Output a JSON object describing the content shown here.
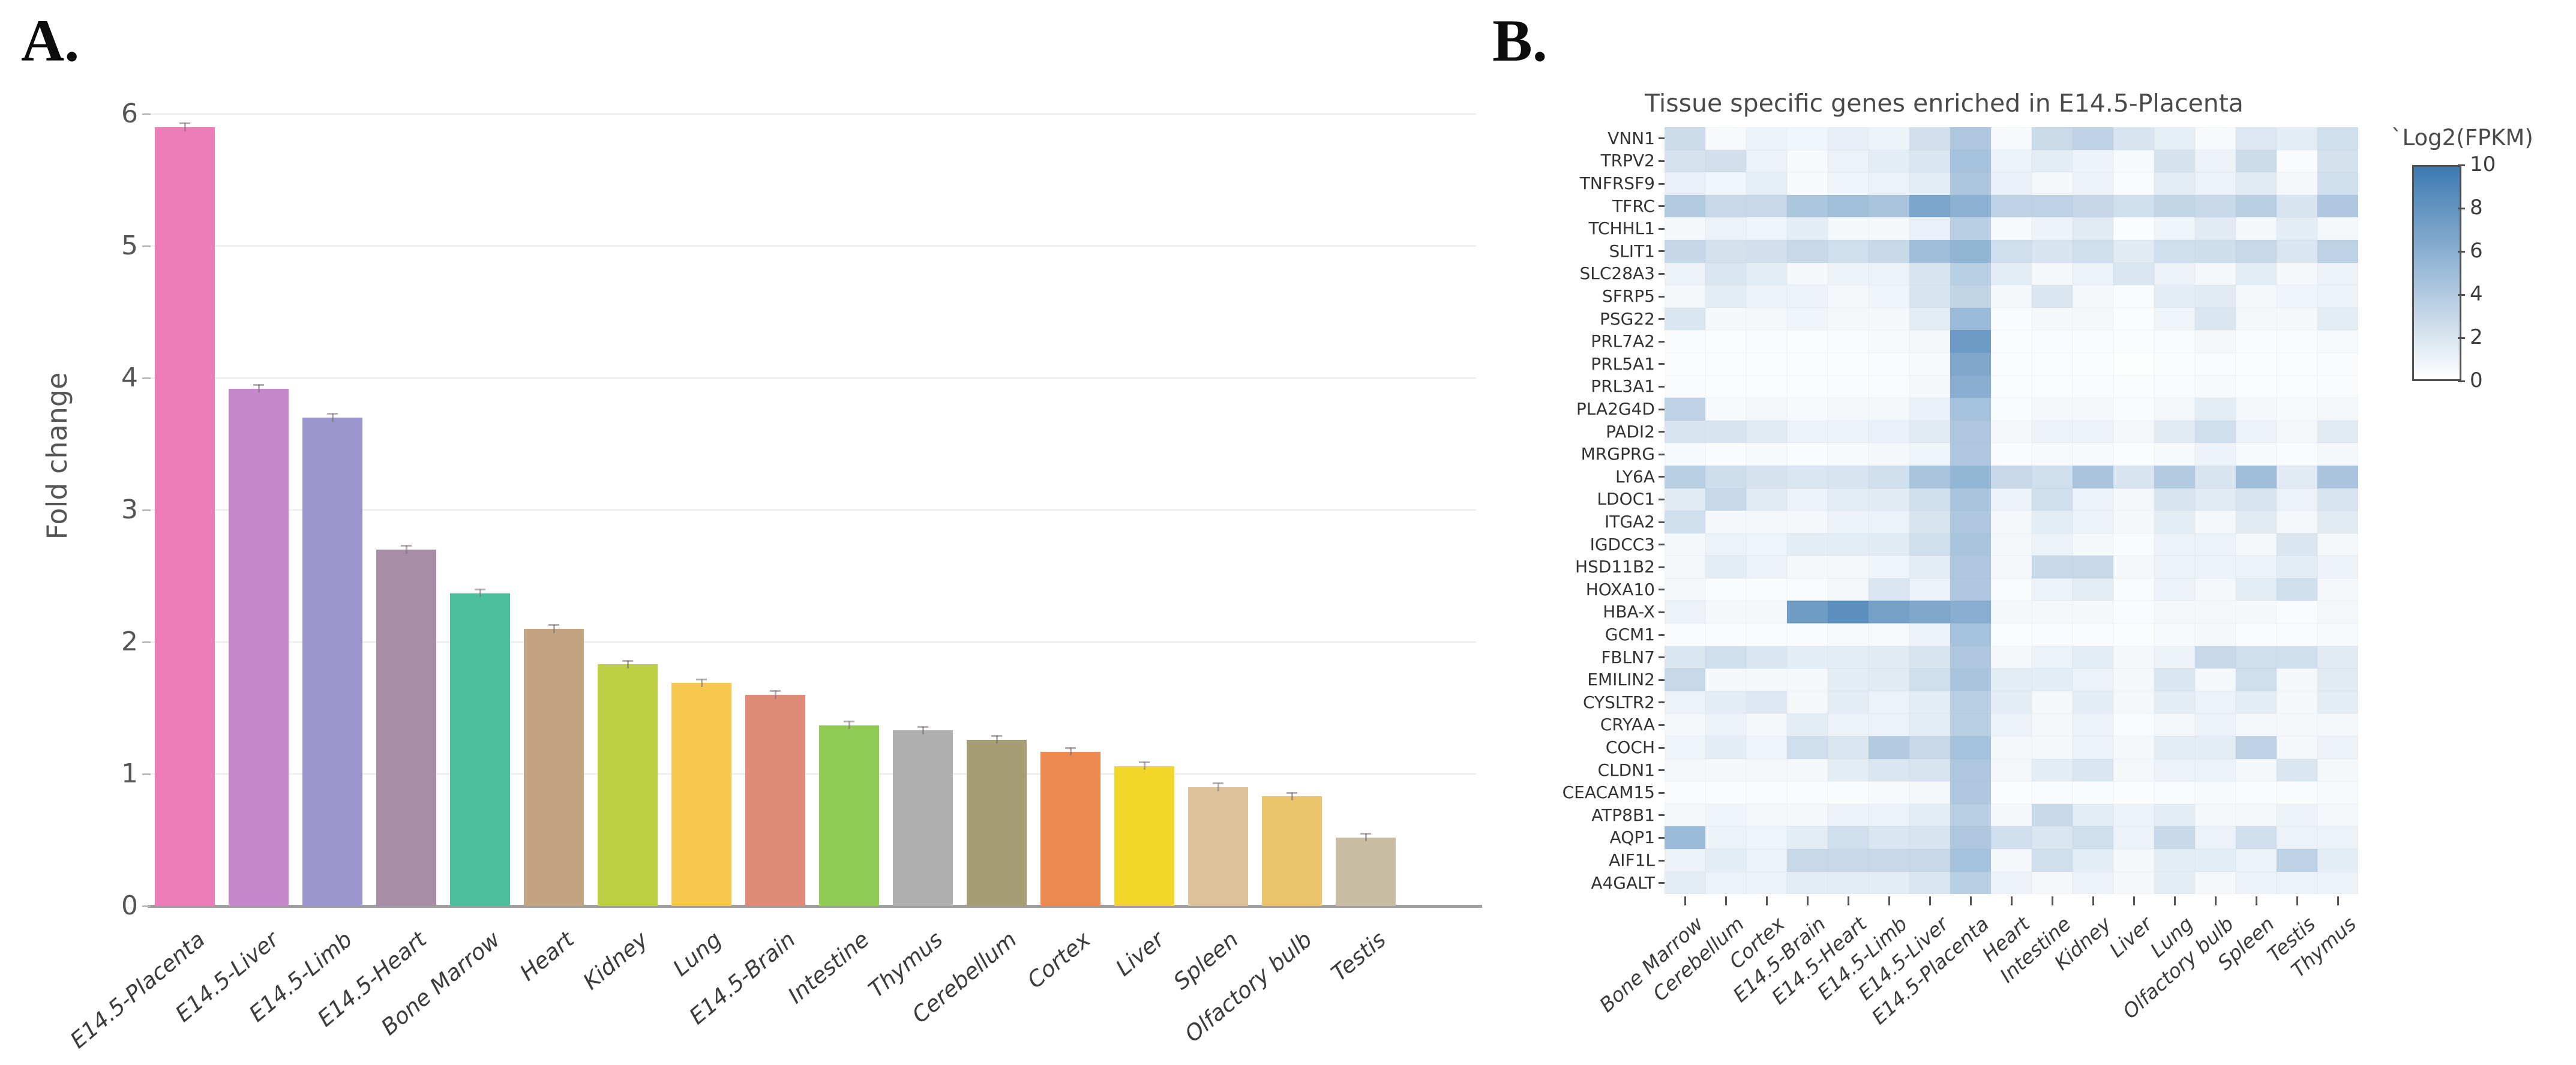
{
  "panels": {
    "a_label": "A.",
    "b_label": "B."
  },
  "chart_data": [
    {
      "type": "bar",
      "title": "",
      "xlabel": "",
      "ylabel": "Fold change",
      "ylim": [
        0,
        6
      ],
      "yticks": [
        0,
        1,
        2,
        3,
        4,
        5,
        6
      ],
      "grid": true,
      "categories": [
        "E14.5-Placenta",
        "E14.5-Liver",
        "E14.5-Limb",
        "E14.5-Heart",
        "Bone Marrow",
        "Heart",
        "Kidney",
        "Lung",
        "E14.5-Brain",
        "Intestine",
        "Thymus",
        "Cerebellum",
        "Cortex",
        "Liver",
        "Spleen",
        "Olfactory bulb",
        "Testis"
      ],
      "values": [
        5.9,
        3.92,
        3.7,
        2.7,
        2.37,
        2.1,
        1.83,
        1.69,
        1.6,
        1.37,
        1.33,
        1.26,
        1.17,
        1.06,
        0.9,
        0.83,
        0.52
      ],
      "error": 0.03,
      "bar_colors": [
        "#ed7db8",
        "#c687cb",
        "#9a95cd",
        "#a78da6",
        "#4cbf9c",
        "#c2a483",
        "#bdd044",
        "#f6c94e",
        "#e08a78",
        "#90cb55",
        "#b0b0b0",
        "#a59e74",
        "#ee8951",
        "#f3d629",
        "#ddc29b",
        "#ecc46e",
        "#c9bda3"
      ]
    },
    {
      "type": "heatmap",
      "title": "Tissue specific genes enriched in E14.5-Placenta",
      "columns": [
        "Bone Marrow",
        "Cerebellum",
        "Cortex",
        "E14.5-Brain",
        "E14.5-Heart",
        "E14.5-Limb",
        "E14.5-Liver",
        "E14.5-Placenta",
        "Heart",
        "Intestine",
        "Kidney",
        "Liver",
        "Lung",
        "Olfactory bulb",
        "Spleen",
        "Testis",
        "Thymus"
      ],
      "rows": [
        "VNN1",
        "TRPV2",
        "TNFRSF9",
        "TFRC",
        "TCHHL1",
        "SLIT1",
        "SLC28A3",
        "SFRP5",
        "PSG22",
        "PRL7A2",
        "PRL5A1",
        "PRL3A1",
        "PLA2G4D",
        "PADI2",
        "MRGPRG",
        "LY6A",
        "LDOC1",
        "ITGA2",
        "IGDCC3",
        "HSD11B2",
        "HOXA10",
        "HBA-X",
        "GCM1",
        "FBLN7",
        "EMILIN2",
        "CYSLTR2",
        "CRYAA",
        "COCH",
        "CLDN1",
        "CEACAM15",
        "ATP8B1",
        "AQP1",
        "AIF1L",
        "A4GALT"
      ],
      "values": [
        [
          2.6,
          0.4,
          0.9,
          0.7,
          1.2,
          0.9,
          2.3,
          4.2,
          0.4,
          2.8,
          3.3,
          2.0,
          1.3,
          0.4,
          1.8,
          1.4,
          2.4
        ],
        [
          2.1,
          2.3,
          1.0,
          0.4,
          1.0,
          1.4,
          1.9,
          4.6,
          1.0,
          1.4,
          0.9,
          0.4,
          2.1,
          0.9,
          2.6,
          0.3,
          2.2
        ],
        [
          1.1,
          0.7,
          1.3,
          0.4,
          0.8,
          1.0,
          1.4,
          4.3,
          1.1,
          0.5,
          0.9,
          0.3,
          1.4,
          1.0,
          1.5,
          0.5,
          2.4
        ],
        [
          3.9,
          2.9,
          2.9,
          4.3,
          4.8,
          4.4,
          6.8,
          5.9,
          3.4,
          3.4,
          3.0,
          2.4,
          3.1,
          2.9,
          3.6,
          2.0,
          4.1
        ],
        [
          0.5,
          1.0,
          0.8,
          1.4,
          0.5,
          0.5,
          1.1,
          3.6,
          0.4,
          0.9,
          1.5,
          0.2,
          0.8,
          1.5,
          0.5,
          1.4,
          0.6
        ],
        [
          3.0,
          2.2,
          2.3,
          2.9,
          2.4,
          2.9,
          4.9,
          5.6,
          2.4,
          2.0,
          2.4,
          1.5,
          2.4,
          2.5,
          2.9,
          1.9,
          3.4
        ],
        [
          1.0,
          1.9,
          1.4,
          0.5,
          0.9,
          1.0,
          2.0,
          3.6,
          1.4,
          0.5,
          1.0,
          1.9,
          1.0,
          0.5,
          1.4,
          0.5,
          1.0
        ],
        [
          0.5,
          1.4,
          0.9,
          1.0,
          0.5,
          0.8,
          2.0,
          3.2,
          0.5,
          1.9,
          0.5,
          0.3,
          1.4,
          1.5,
          0.5,
          0.8,
          1.0
        ],
        [
          1.9,
          0.5,
          0.5,
          0.8,
          0.5,
          0.5,
          1.4,
          5.1,
          0.3,
          0.5,
          0.5,
          0.2,
          0.8,
          1.9,
          0.5,
          0.5,
          1.4
        ],
        [
          0.3,
          0.2,
          0.3,
          0.2,
          0.3,
          0.4,
          0.6,
          7.6,
          0.2,
          0.3,
          0.3,
          0.2,
          0.3,
          0.5,
          0.3,
          0.3,
          0.4
        ],
        [
          0.2,
          0.2,
          0.2,
          0.2,
          0.2,
          0.3,
          0.4,
          6.6,
          0.2,
          0.2,
          0.2,
          0.1,
          0.2,
          0.3,
          0.2,
          0.2,
          0.3
        ],
        [
          0.3,
          0.2,
          0.2,
          0.2,
          0.3,
          0.3,
          0.5,
          6.1,
          0.2,
          0.2,
          0.3,
          0.2,
          0.3,
          0.4,
          0.2,
          0.2,
          0.3
        ],
        [
          3.4,
          0.4,
          0.5,
          0.4,
          0.6,
          0.6,
          1.1,
          4.6,
          0.3,
          0.5,
          0.5,
          0.3,
          0.6,
          1.4,
          0.5,
          0.4,
          0.6
        ],
        [
          2.0,
          2.0,
          1.5,
          1.0,
          1.0,
          1.1,
          1.5,
          4.1,
          0.5,
          1.0,
          1.0,
          0.5,
          1.5,
          2.4,
          1.0,
          0.5,
          1.5
        ],
        [
          0.4,
          0.3,
          0.4,
          0.3,
          0.4,
          0.5,
          0.8,
          4.1,
          0.3,
          0.4,
          0.4,
          0.2,
          0.4,
          0.9,
          0.4,
          0.3,
          0.5
        ],
        [
          3.6,
          2.5,
          2.1,
          1.9,
          2.0,
          2.4,
          4.4,
          5.5,
          2.9,
          2.4,
          4.4,
          2.0,
          3.9,
          2.0,
          4.9,
          1.5,
          4.4
        ],
        [
          1.5,
          2.9,
          1.5,
          1.0,
          1.4,
          1.5,
          2.4,
          4.4,
          1.0,
          2.4,
          1.0,
          0.5,
          2.0,
          1.5,
          2.0,
          1.0,
          2.0
        ],
        [
          2.4,
          0.5,
          0.5,
          0.5,
          1.0,
          1.0,
          2.0,
          4.1,
          0.5,
          1.4,
          1.0,
          0.5,
          1.4,
          0.5,
          1.5,
          0.5,
          1.5
        ],
        [
          0.5,
          1.0,
          0.8,
          1.4,
          1.4,
          1.5,
          2.4,
          4.4,
          0.5,
          1.0,
          0.5,
          0.3,
          1.0,
          1.0,
          0.5,
          1.9,
          0.5
        ],
        [
          0.5,
          1.4,
          1.0,
          0.5,
          0.5,
          0.8,
          1.4,
          4.1,
          0.5,
          2.9,
          2.9,
          0.5,
          1.0,
          1.0,
          1.0,
          1.4,
          1.0
        ],
        [
          0.5,
          0.3,
          0.3,
          0.3,
          0.5,
          1.9,
          1.0,
          4.1,
          0.3,
          1.0,
          1.4,
          0.3,
          1.0,
          0.5,
          1.4,
          2.4,
          0.5
        ],
        [
          1.0,
          0.5,
          0.5,
          7.4,
          8.4,
          7.1,
          6.6,
          6.1,
          0.5,
          0.5,
          0.5,
          0.3,
          0.5,
          0.5,
          0.5,
          0.3,
          0.5
        ],
        [
          0.3,
          0.3,
          0.3,
          0.3,
          0.4,
          0.4,
          0.9,
          4.6,
          0.2,
          0.3,
          0.3,
          0.2,
          0.4,
          0.5,
          0.3,
          0.3,
          0.4
        ],
        [
          1.9,
          2.4,
          1.9,
          1.4,
          1.4,
          1.5,
          2.0,
          4.1,
          0.5,
          1.0,
          1.4,
          0.5,
          1.0,
          2.9,
          2.4,
          2.4,
          1.5
        ],
        [
          2.9,
          0.5,
          0.5,
          0.5,
          1.4,
          1.5,
          2.4,
          4.4,
          1.4,
          1.4,
          1.0,
          0.5,
          1.9,
          0.5,
          2.4,
          0.5,
          1.5
        ],
        [
          1.0,
          1.4,
          1.7,
          0.5,
          1.4,
          1.0,
          1.4,
          3.6,
          1.4,
          0.5,
          1.4,
          0.5,
          1.4,
          1.0,
          1.4,
          0.5,
          1.4
        ],
        [
          0.5,
          1.0,
          0.5,
          1.4,
          1.0,
          1.0,
          1.4,
          3.6,
          1.0,
          0.5,
          1.0,
          0.3,
          0.5,
          1.0,
          0.5,
          0.5,
          0.5
        ],
        [
          0.8,
          1.4,
          0.8,
          2.4,
          1.9,
          3.9,
          2.9,
          4.6,
          0.5,
          0.5,
          1.0,
          0.5,
          1.4,
          1.4,
          3.4,
          0.5,
          1.0
        ],
        [
          0.5,
          0.5,
          0.5,
          0.5,
          1.4,
          1.9,
          2.0,
          4.1,
          0.5,
          1.4,
          1.9,
          0.5,
          1.0,
          1.0,
          0.5,
          1.9,
          0.5
        ],
        [
          0.3,
          0.3,
          0.3,
          0.3,
          0.3,
          0.4,
          0.6,
          4.1,
          0.2,
          0.3,
          0.3,
          0.2,
          0.3,
          0.4,
          0.3,
          0.3,
          0.4
        ],
        [
          0.5,
          0.8,
          0.5,
          0.5,
          1.0,
          1.0,
          1.4,
          3.6,
          0.5,
          2.9,
          1.4,
          1.0,
          1.4,
          0.5,
          0.5,
          1.0,
          0.5
        ],
        [
          5.1,
          1.0,
          0.8,
          1.4,
          2.4,
          1.9,
          2.0,
          4.1,
          2.4,
          1.9,
          2.4,
          1.0,
          2.9,
          1.0,
          2.4,
          1.0,
          1.0
        ],
        [
          1.0,
          1.4,
          1.0,
          2.9,
          2.9,
          2.9,
          2.9,
          4.6,
          0.5,
          2.4,
          1.4,
          0.5,
          1.4,
          1.4,
          1.0,
          3.4,
          1.4
        ],
        [
          1.4,
          1.0,
          1.0,
          1.4,
          1.4,
          1.4,
          1.9,
          3.6,
          1.0,
          0.5,
          1.0,
          0.5,
          1.4,
          0.5,
          1.0,
          1.0,
          1.0
        ]
      ],
      "colorbar": {
        "label": "`Log2(FPKM)",
        "ticks": [
          0,
          2,
          4,
          6,
          8,
          10
        ],
        "range": [
          0,
          10
        ],
        "color_low": "#ffffff",
        "color_high": "#3d7ab2"
      },
      "legend_position": "right"
    }
  ]
}
